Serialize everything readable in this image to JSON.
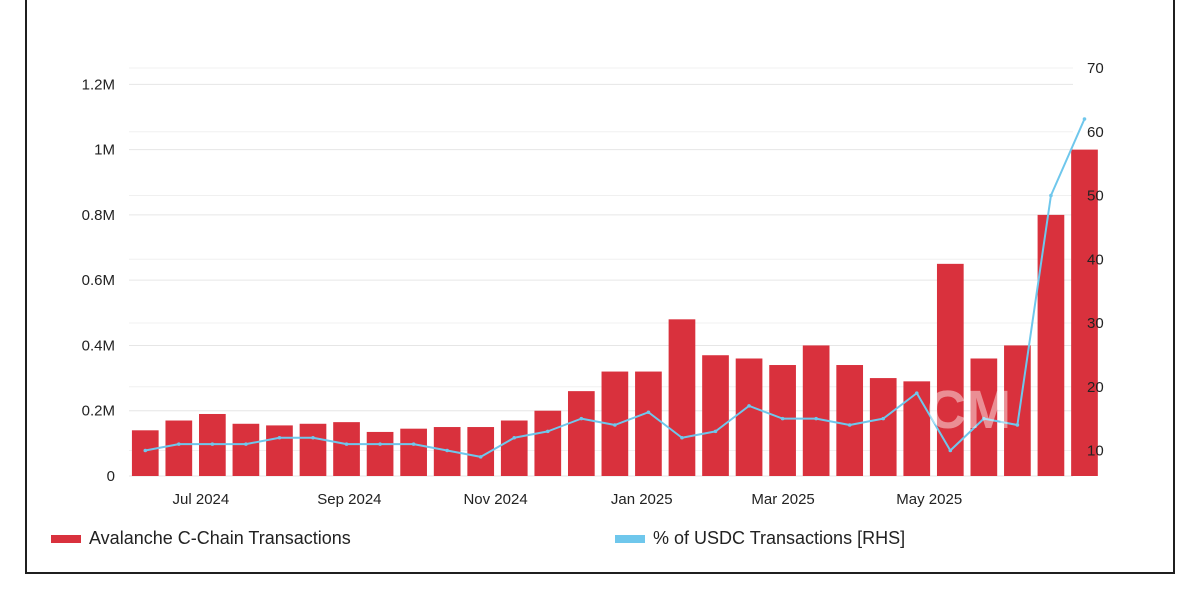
{
  "chart_data": {
    "type": "bar",
    "x_range": [
      "2024-06-01",
      "2025-06-30"
    ],
    "x_ticks": [
      "Jul 2024",
      "Sep 2024",
      "Nov 2024",
      "Jan 2025",
      "Mar 2025",
      "May 2025"
    ],
    "y_left": {
      "ticks": [
        "0",
        "0.2M",
        "0.4M",
        "0.6M",
        "0.8M",
        "1M",
        "1.2M"
      ],
      "ylim": [
        0,
        1250000
      ]
    },
    "y_right": {
      "ticks": [
        "10",
        "20",
        "30",
        "40",
        "50",
        "60",
        "70"
      ],
      "ylim": [
        6,
        70
      ]
    },
    "grid": true,
    "legend_position": "bottom",
    "series": [
      {
        "name": "Avalanche C-Chain Transactions",
        "kind": "bar",
        "axis": "left",
        "color": "#d9313d",
        "x": [
          "2024-06-01",
          "2024-06-15",
          "2024-06-29",
          "2024-07-13",
          "2024-07-27",
          "2024-08-10",
          "2024-08-24",
          "2024-09-07",
          "2024-09-21",
          "2024-10-05",
          "2024-10-19",
          "2024-11-02",
          "2024-11-16",
          "2024-11-30",
          "2024-12-14",
          "2024-12-28",
          "2025-01-11",
          "2025-01-25",
          "2025-02-08",
          "2025-02-22",
          "2025-03-08",
          "2025-03-22",
          "2025-04-05",
          "2025-04-19",
          "2025-05-03",
          "2025-05-17",
          "2025-05-31",
          "2025-06-14",
          "2025-06-28"
        ],
        "values": [
          140000,
          170000,
          190000,
          160000,
          155000,
          160000,
          165000,
          135000,
          145000,
          150000,
          150000,
          170000,
          200000,
          260000,
          320000,
          320000,
          480000,
          370000,
          360000,
          340000,
          400000,
          340000,
          300000,
          290000,
          650000,
          360000,
          400000,
          800000,
          1000000
        ]
      },
      {
        "name": "% of USDC Transactions [RHS]",
        "kind": "line",
        "axis": "right",
        "color": "#6fc7ec",
        "x": [
          "2024-06-01",
          "2024-06-15",
          "2024-06-29",
          "2024-07-13",
          "2024-07-27",
          "2024-08-10",
          "2024-08-24",
          "2024-09-07",
          "2024-09-21",
          "2024-10-05",
          "2024-10-19",
          "2024-11-02",
          "2024-11-16",
          "2024-11-30",
          "2024-12-14",
          "2024-12-28",
          "2025-01-11",
          "2025-01-25",
          "2025-02-08",
          "2025-02-22",
          "2025-03-08",
          "2025-03-22",
          "2025-04-05",
          "2025-04-19",
          "2025-05-03",
          "2025-05-17",
          "2025-05-31",
          "2025-06-14",
          "2025-06-28"
        ],
        "values": [
          10,
          11,
          11,
          11,
          12,
          12,
          11,
          11,
          11,
          10,
          9,
          12,
          13,
          15,
          14,
          16,
          12,
          13,
          17,
          15,
          15,
          14,
          15,
          19,
          10,
          15,
          14,
          50,
          62
        ]
      }
    ]
  },
  "watermark": "CM"
}
